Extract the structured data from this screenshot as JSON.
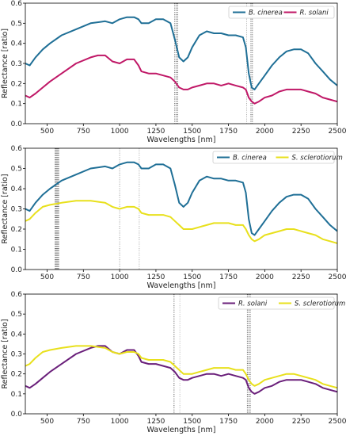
{
  "chart_data": [
    {
      "type": "line",
      "xlabel": "Wavelengths [nm]",
      "ylabel": "Reflectance [ratio]",
      "xlim": [
        350,
        2500
      ],
      "ylim": [
        0.0,
        0.6
      ],
      "xticks": [
        500,
        750,
        1000,
        1250,
        1500,
        1750,
        2000,
        2250,
        2500
      ],
      "yticks": [
        0.0,
        0.1,
        0.2,
        0.3,
        0.4,
        0.5,
        0.6
      ],
      "grid": false,
      "legend": "top-right",
      "vlines": [
        {
          "x": 1380,
          "color": "#555555"
        },
        {
          "x": 1390,
          "color": "#555555"
        },
        {
          "x": 1400,
          "color": "#555555"
        },
        {
          "x": 1875,
          "color": "#aaaaaa"
        },
        {
          "x": 1905,
          "color": "#555555"
        },
        {
          "x": 1915,
          "color": "#555555"
        }
      ],
      "series": [
        {
          "name": "B. cinerea",
          "color": "#1f6f96",
          "x": [
            350,
            380,
            420,
            470,
            520,
            600,
            700,
            800,
            900,
            950,
            1000,
            1050,
            1100,
            1130,
            1150,
            1200,
            1250,
            1300,
            1350,
            1380,
            1410,
            1440,
            1470,
            1500,
            1550,
            1600,
            1650,
            1700,
            1750,
            1800,
            1850,
            1870,
            1890,
            1910,
            1930,
            1960,
            2000,
            2050,
            2100,
            2150,
            2200,
            2250,
            2300,
            2350,
            2400,
            2450,
            2500
          ],
          "y": [
            0.3,
            0.29,
            0.33,
            0.37,
            0.4,
            0.44,
            0.47,
            0.5,
            0.51,
            0.5,
            0.52,
            0.53,
            0.53,
            0.52,
            0.5,
            0.5,
            0.52,
            0.52,
            0.5,
            0.42,
            0.33,
            0.31,
            0.33,
            0.38,
            0.44,
            0.46,
            0.45,
            0.45,
            0.44,
            0.44,
            0.43,
            0.38,
            0.25,
            0.18,
            0.17,
            0.2,
            0.24,
            0.29,
            0.33,
            0.36,
            0.37,
            0.37,
            0.35,
            0.3,
            0.26,
            0.22,
            0.19
          ]
        },
        {
          "name": "R. solani",
          "color": "#c01867",
          "x": [
            350,
            380,
            420,
            470,
            520,
            600,
            700,
            800,
            850,
            900,
            950,
            1000,
            1050,
            1100,
            1130,
            1150,
            1200,
            1250,
            1300,
            1350,
            1380,
            1410,
            1440,
            1470,
            1500,
            1550,
            1600,
            1650,
            1700,
            1750,
            1800,
            1850,
            1870,
            1890,
            1910,
            1930,
            1960,
            2000,
            2050,
            2100,
            2150,
            2200,
            2250,
            2300,
            2350,
            2400,
            2450,
            2500
          ],
          "y": [
            0.14,
            0.13,
            0.15,
            0.18,
            0.21,
            0.25,
            0.3,
            0.33,
            0.34,
            0.34,
            0.31,
            0.3,
            0.32,
            0.32,
            0.29,
            0.26,
            0.25,
            0.25,
            0.24,
            0.23,
            0.21,
            0.18,
            0.17,
            0.17,
            0.18,
            0.19,
            0.2,
            0.2,
            0.19,
            0.2,
            0.19,
            0.18,
            0.17,
            0.13,
            0.11,
            0.1,
            0.11,
            0.13,
            0.14,
            0.16,
            0.17,
            0.17,
            0.17,
            0.16,
            0.15,
            0.13,
            0.12,
            0.11
          ]
        }
      ]
    },
    {
      "type": "line",
      "xlabel": "Wavelengths [nm]",
      "ylabel": "Reflectance [ratio]",
      "xlim": [
        350,
        2500
      ],
      "ylim": [
        0.0,
        0.6
      ],
      "xticks": [
        500,
        750,
        1000,
        1250,
        1500,
        1750,
        2000,
        2250,
        2500
      ],
      "yticks": [
        0.0,
        0.1,
        0.2,
        0.3,
        0.4,
        0.5,
        0.6
      ],
      "grid": false,
      "legend": "top-right",
      "vlines": [
        {
          "x": 555,
          "color": "#666666"
        },
        {
          "x": 560,
          "color": "#666666"
        },
        {
          "x": 565,
          "color": "#666666"
        },
        {
          "x": 570,
          "color": "#666666"
        },
        {
          "x": 575,
          "color": "#666666"
        },
        {
          "x": 580,
          "color": "#666666"
        },
        {
          "x": 1000,
          "color": "#999999"
        },
        {
          "x": 1135,
          "color": "#aaaaaa"
        }
      ],
      "series": [
        {
          "name": "B. cinerea",
          "color": "#1f6f96",
          "x": [
            350,
            380,
            420,
            470,
            520,
            600,
            700,
            800,
            900,
            950,
            1000,
            1050,
            1100,
            1130,
            1150,
            1200,
            1250,
            1300,
            1350,
            1380,
            1410,
            1440,
            1470,
            1500,
            1550,
            1600,
            1650,
            1700,
            1750,
            1800,
            1850,
            1870,
            1890,
            1910,
            1930,
            1960,
            2000,
            2050,
            2100,
            2150,
            2200,
            2250,
            2300,
            2350,
            2400,
            2450,
            2500
          ],
          "y": [
            0.3,
            0.29,
            0.33,
            0.37,
            0.4,
            0.44,
            0.47,
            0.5,
            0.51,
            0.5,
            0.52,
            0.53,
            0.53,
            0.52,
            0.5,
            0.5,
            0.52,
            0.52,
            0.5,
            0.42,
            0.33,
            0.31,
            0.33,
            0.38,
            0.44,
            0.46,
            0.45,
            0.45,
            0.44,
            0.44,
            0.43,
            0.38,
            0.25,
            0.18,
            0.17,
            0.2,
            0.24,
            0.29,
            0.33,
            0.36,
            0.37,
            0.37,
            0.35,
            0.3,
            0.26,
            0.22,
            0.19
          ]
        },
        {
          "name": "S. sclerotiorum",
          "color": "#e8e01c",
          "x": [
            350,
            380,
            420,
            470,
            520,
            600,
            700,
            800,
            900,
            950,
            1000,
            1050,
            1100,
            1130,
            1150,
            1200,
            1250,
            1300,
            1350,
            1380,
            1410,
            1440,
            1470,
            1500,
            1550,
            1600,
            1650,
            1700,
            1750,
            1800,
            1850,
            1870,
            1890,
            1910,
            1930,
            1960,
            2000,
            2050,
            2100,
            2150,
            2200,
            2250,
            2300,
            2350,
            2400,
            2450,
            2500
          ],
          "y": [
            0.24,
            0.25,
            0.28,
            0.31,
            0.32,
            0.33,
            0.34,
            0.34,
            0.33,
            0.31,
            0.3,
            0.31,
            0.31,
            0.3,
            0.28,
            0.27,
            0.27,
            0.27,
            0.26,
            0.24,
            0.22,
            0.2,
            0.2,
            0.2,
            0.21,
            0.22,
            0.23,
            0.23,
            0.23,
            0.22,
            0.22,
            0.2,
            0.17,
            0.15,
            0.14,
            0.15,
            0.17,
            0.18,
            0.19,
            0.2,
            0.2,
            0.19,
            0.18,
            0.17,
            0.15,
            0.14,
            0.13
          ]
        }
      ]
    },
    {
      "type": "line",
      "xlabel": "Wavelengths [nm]",
      "ylabel": "Reflectance [ratio]",
      "xlim": [
        350,
        2500
      ],
      "ylim": [
        0.0,
        0.6
      ],
      "xticks": [
        500,
        750,
        1000,
        1250,
        1500,
        1750,
        2000,
        2250,
        2500
      ],
      "yticks": [
        0.0,
        0.1,
        0.2,
        0.3,
        0.4,
        0.5,
        0.6
      ],
      "grid": false,
      "legend": "top-right",
      "vlines": [
        {
          "x": 1375,
          "color": "#555555"
        },
        {
          "x": 1415,
          "color": "#bbbbbb"
        },
        {
          "x": 1880,
          "color": "#555555"
        },
        {
          "x": 1890,
          "color": "#555555"
        },
        {
          "x": 1900,
          "color": "#555555"
        }
      ],
      "series": [
        {
          "name": "R. solani",
          "color": "#6a1f7a",
          "x": [
            350,
            380,
            420,
            470,
            520,
            600,
            700,
            800,
            850,
            900,
            950,
            1000,
            1050,
            1100,
            1130,
            1150,
            1200,
            1250,
            1300,
            1350,
            1380,
            1410,
            1440,
            1470,
            1500,
            1550,
            1600,
            1650,
            1700,
            1750,
            1800,
            1850,
            1870,
            1890,
            1910,
            1930,
            1960,
            2000,
            2050,
            2100,
            2150,
            2200,
            2250,
            2300,
            2350,
            2400,
            2450,
            2500
          ],
          "y": [
            0.14,
            0.13,
            0.15,
            0.18,
            0.21,
            0.25,
            0.3,
            0.33,
            0.34,
            0.34,
            0.31,
            0.3,
            0.32,
            0.32,
            0.29,
            0.26,
            0.25,
            0.25,
            0.24,
            0.23,
            0.21,
            0.18,
            0.17,
            0.17,
            0.18,
            0.19,
            0.2,
            0.2,
            0.19,
            0.2,
            0.19,
            0.18,
            0.17,
            0.13,
            0.11,
            0.1,
            0.11,
            0.13,
            0.14,
            0.16,
            0.17,
            0.17,
            0.17,
            0.16,
            0.15,
            0.13,
            0.12,
            0.11
          ]
        },
        {
          "name": "S. sclerotiorum",
          "color": "#e8e01c",
          "x": [
            350,
            380,
            420,
            470,
            520,
            600,
            700,
            800,
            900,
            950,
            1000,
            1050,
            1100,
            1130,
            1150,
            1200,
            1250,
            1300,
            1350,
            1380,
            1410,
            1440,
            1470,
            1500,
            1550,
            1600,
            1650,
            1700,
            1750,
            1800,
            1850,
            1870,
            1890,
            1910,
            1930,
            1960,
            2000,
            2050,
            2100,
            2150,
            2200,
            2250,
            2300,
            2350,
            2400,
            2450,
            2500
          ],
          "y": [
            0.24,
            0.25,
            0.28,
            0.31,
            0.32,
            0.33,
            0.34,
            0.34,
            0.33,
            0.31,
            0.3,
            0.31,
            0.31,
            0.3,
            0.28,
            0.27,
            0.27,
            0.27,
            0.26,
            0.24,
            0.22,
            0.2,
            0.2,
            0.2,
            0.21,
            0.22,
            0.23,
            0.23,
            0.23,
            0.22,
            0.22,
            0.2,
            0.17,
            0.15,
            0.14,
            0.15,
            0.17,
            0.18,
            0.19,
            0.2,
            0.2,
            0.19,
            0.18,
            0.17,
            0.15,
            0.14,
            0.13
          ]
        }
      ]
    }
  ]
}
